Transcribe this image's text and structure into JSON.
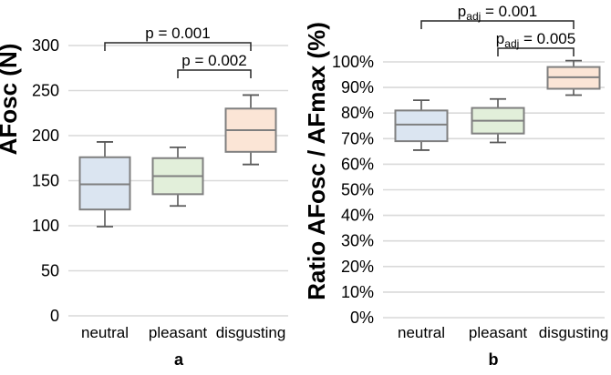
{
  "figure": {
    "background": "#ffffff",
    "panel_labels": [
      "a",
      "b"
    ],
    "styles": {
      "grid_color": "#d9d9d9",
      "box_border_color": "#7f7f7f",
      "median_color": "#7f7f7f",
      "whisker_color": "#595959",
      "bracket_color": "#262626",
      "text_color": "#000000"
    }
  },
  "chart_data": [
    {
      "type": "boxplot",
      "panel_label": "a",
      "ylabel": "AFosc (N)",
      "xlabel": "",
      "categories": [
        "neutral",
        "pleasant",
        "disgusting"
      ],
      "ytick_values": [
        0,
        50,
        100,
        150,
        200,
        250,
        300
      ],
      "ytick_labels": [
        "0",
        "50",
        "100",
        "150",
        "200",
        "250",
        "300"
      ],
      "ylim": [
        0,
        310
      ],
      "grid": true,
      "series": [
        {
          "name": "neutral",
          "whisker_low": 99,
          "q1": 118,
          "median": 146,
          "q3": 176,
          "whisker_high": 193,
          "fill": "#dbe5f1"
        },
        {
          "name": "pleasant",
          "whisker_low": 122,
          "q1": 135,
          "median": 155,
          "q3": 175,
          "whisker_high": 187,
          "fill": "#e2efda"
        },
        {
          "name": "disgusting",
          "whisker_low": 168,
          "q1": 182,
          "median": 206,
          "q3": 230,
          "whisker_high": 245,
          "fill": "#fbe5d6"
        }
      ],
      "significance_brackets": [
        {
          "text": "p = 0.001",
          "text_main": "p",
          "text_sub": "",
          "text_rest": " = 0.001",
          "from": "neutral",
          "to": "disgusting"
        },
        {
          "text": "p = 0.002",
          "text_main": "p",
          "text_sub": "",
          "text_rest": " = 0.002",
          "from": "pleasant",
          "to": "disgusting"
        }
      ]
    },
    {
      "type": "boxplot",
      "panel_label": "b",
      "ylabel": "Ratio AFosc / AFmax (%)",
      "xlabel": "",
      "categories": [
        "neutral",
        "pleasant",
        "disgusting"
      ],
      "ytick_values": [
        0,
        10,
        20,
        30,
        40,
        50,
        60,
        70,
        80,
        90,
        100
      ],
      "ytick_labels": [
        "0%",
        "10%",
        "20%",
        "30%",
        "40%",
        "50%",
        "60%",
        "70%",
        "80%",
        "90%",
        "100%"
      ],
      "ylim": [
        0,
        105
      ],
      "grid": true,
      "series": [
        {
          "name": "neutral",
          "whisker_low": 65.5,
          "q1": 69,
          "median": 75.5,
          "q3": 81,
          "whisker_high": 85,
          "fill": "#dbe5f1"
        },
        {
          "name": "pleasant",
          "whisker_low": 68.5,
          "q1": 72,
          "median": 77,
          "q3": 82,
          "whisker_high": 85.5,
          "fill": "#e2efda"
        },
        {
          "name": "disgusting",
          "whisker_low": 87,
          "q1": 89.5,
          "median": 94,
          "q3": 98,
          "whisker_high": 100.5,
          "fill": "#fbe5d6"
        }
      ],
      "significance_brackets": [
        {
          "text": "p_adj = 0.001",
          "text_main": "p",
          "text_sub": "adj",
          "text_rest": " = 0.001",
          "from": "neutral",
          "to": "disgusting"
        },
        {
          "text": "p_adj = 0.005",
          "text_main": "p",
          "text_sub": "adj",
          "text_rest": " = 0.005",
          "from": "pleasant",
          "to": "disgusting"
        }
      ]
    }
  ]
}
